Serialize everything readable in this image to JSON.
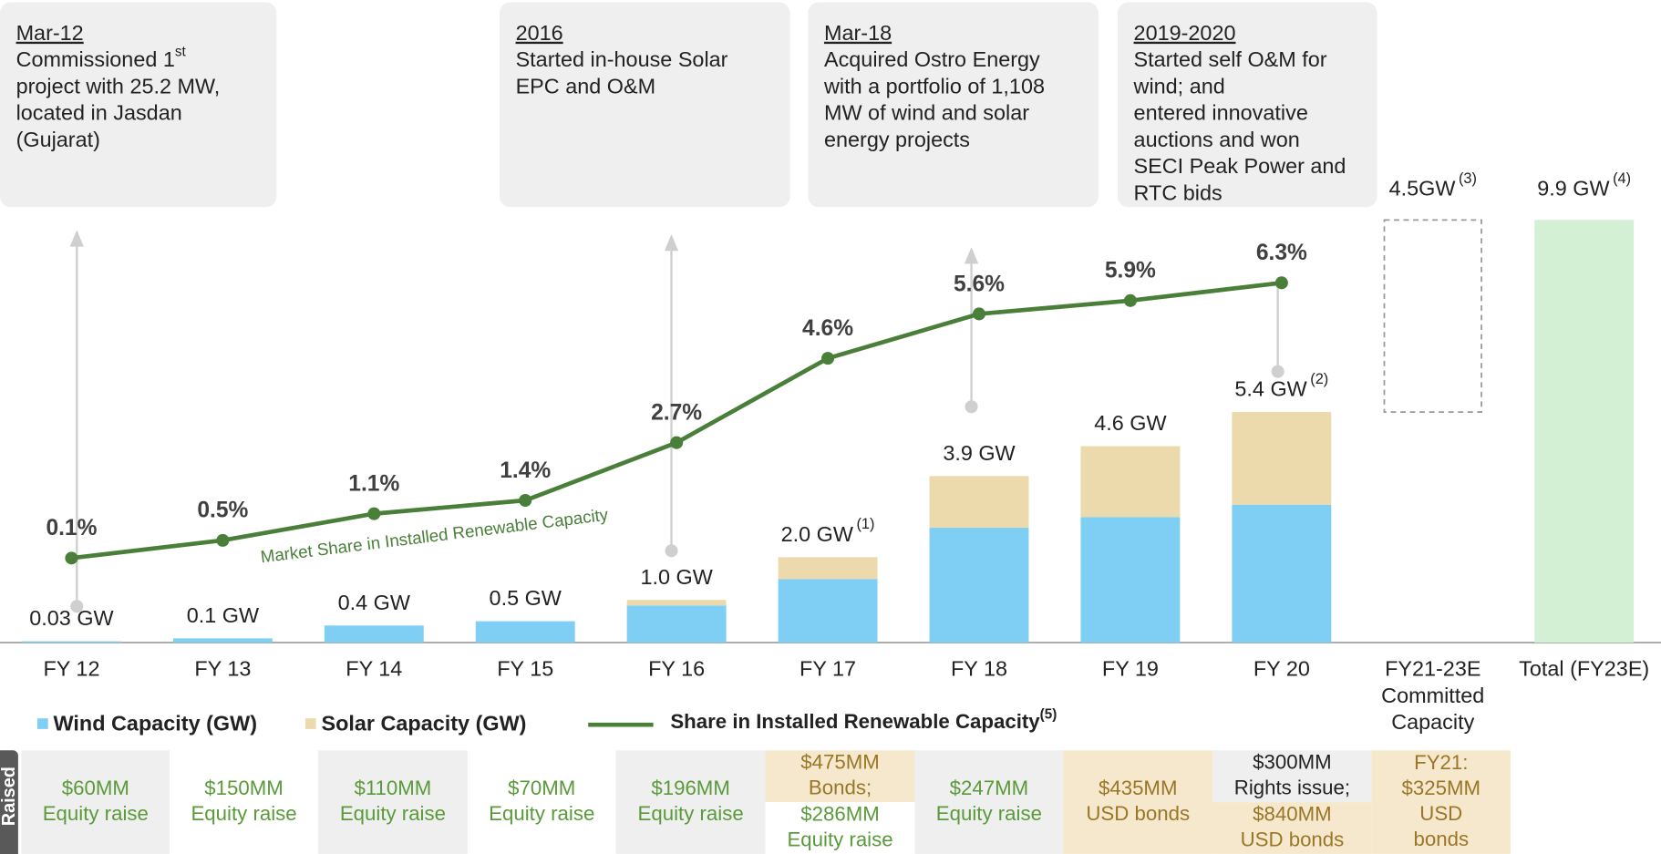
{
  "chart_data": {
    "type": "bar",
    "categories": [
      "FY 12",
      "FY 13",
      "FY 14",
      "FY 15",
      "FY 16",
      "FY 17",
      "FY 18",
      "FY 19",
      "FY 20",
      [
        "FY21-23E",
        "Committed",
        "Capacity"
      ],
      "Total (FY23E)"
    ],
    "series": [
      {
        "name": "Wind Capacity (GW)",
        "color": "#7fcff5",
        "values": [
          0.03,
          0.1,
          0.4,
          0.5,
          0.87,
          1.49,
          2.69,
          2.94,
          3.23,
          null,
          null
        ]
      },
      {
        "name": "Solar Capacity (GW)",
        "color": "#ecd9ac",
        "values": [
          0,
          0,
          0,
          0,
          0.13,
          0.51,
          1.21,
          1.66,
          2.17,
          null,
          null
        ]
      },
      {
        "name": "Share in Installed Renewable Capacity",
        "name_note": "(5)",
        "type": "line",
        "color": "#4a7f3a",
        "values": [
          0.1,
          0.5,
          1.1,
          1.4,
          2.7,
          4.6,
          5.6,
          5.9,
          6.3,
          null,
          null
        ],
        "value_labels": [
          "0.1%",
          "0.5%",
          "1.1%",
          "1.4%",
          "2.7%",
          "4.6%",
          "5.6%",
          "5.9%",
          "6.3%",
          null,
          null
        ]
      }
    ],
    "totals": {
      "values": [
        0.03,
        0.1,
        0.4,
        0.5,
        1.0,
        2.0,
        3.9,
        4.6,
        5.4,
        4.5,
        9.9
      ],
      "labels": [
        "0.03 GW",
        "0.1 GW",
        "0.4 GW",
        "0.5 GW",
        "1.0 GW",
        "2.0 GW",
        "3.9 GW",
        "4.6 GW",
        "5.4 GW",
        "4.5GW",
        "9.9 GW"
      ],
      "notes": [
        null,
        null,
        null,
        null,
        null,
        "(1)",
        null,
        null,
        "(2)",
        "(3)",
        "(4)"
      ],
      "committed_color": "#999999",
      "total_color": "#d4f0d4"
    },
    "line_label": "Market Share in Installed Renewable Capacity",
    "milestones": [
      {
        "date": "Mar-12",
        "lines": [
          {
            "text": "Commissioned 1",
            "sup": "st"
          },
          "project with 25.2 MW,",
          "located in Jasdan",
          "(Gujarat)"
        ]
      },
      {
        "date": "2016",
        "lines": [
          "Started in-house Solar",
          "EPC and O&M"
        ]
      },
      {
        "date": "Mar-18",
        "lines": [
          "Acquired Ostro Energy",
          "with a portfolio of 1,108",
          "MW of wind and solar",
          "energy projects"
        ]
      },
      {
        "date": "2019-2020",
        "lines": [
          "Started self O&M for",
          "wind; and",
          "entered innovative",
          "auctions and won",
          "SECI Peak Power and",
          "RTC bids"
        ]
      }
    ],
    "funding": {
      "label": "Raised",
      "cells": [
        {
          "parts": [
            {
              "lines": [
                "$60MM",
                "Equity raise"
              ],
              "bg": "#efefef",
              "color": "#5a9a3a"
            }
          ]
        },
        {
          "parts": [
            {
              "lines": [
                "$150MM",
                "Equity raise"
              ],
              "bg": "#ffffff",
              "color": "#5a9a3a"
            }
          ]
        },
        {
          "parts": [
            {
              "lines": [
                "$110MM",
                "Equity raise"
              ],
              "bg": "#efefef",
              "color": "#5a9a3a"
            }
          ]
        },
        {
          "parts": [
            {
              "lines": [
                "$70MM",
                "Equity raise"
              ],
              "bg": "#ffffff",
              "color": "#5a9a3a"
            }
          ]
        },
        {
          "parts": [
            {
              "lines": [
                "$196MM",
                "Equity raise"
              ],
              "bg": "#efefef",
              "color": "#5a9a3a"
            }
          ]
        },
        {
          "parts": [
            {
              "lines": [
                "$475MM",
                "Bonds;"
              ],
              "bg": "#f5e8cc",
              "color": "#9a7628"
            },
            {
              "lines": [
                "$286MM",
                "Equity raise"
              ],
              "bg": "#ffffff",
              "color": "#5a9a3a"
            }
          ]
        },
        {
          "parts": [
            {
              "lines": [
                "$247MM",
                "Equity raise"
              ],
              "bg": "#efefef",
              "color": "#5a9a3a"
            }
          ]
        },
        {
          "parts": [
            {
              "lines": [
                "$435MM",
                "USD bonds"
              ],
              "bg": "#f5e8cc",
              "color": "#9a7628"
            }
          ]
        },
        {
          "parts": [
            {
              "lines": [
                "$300MM",
                "Rights issue;"
              ],
              "bg": "#efefef",
              "color": "#222222"
            },
            {
              "lines": [
                "$840MM",
                "USD bonds"
              ],
              "bg": "#f5e8cc",
              "color": "#9a7628"
            }
          ]
        },
        {
          "parts": [
            {
              "lines": [
                "FY21:",
                "$325MM",
                "USD",
                "bonds"
              ],
              "bg": "#f5e8cc",
              "color": "#9a7628"
            }
          ]
        }
      ]
    }
  }
}
